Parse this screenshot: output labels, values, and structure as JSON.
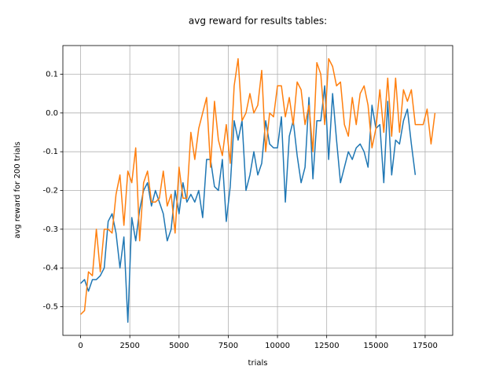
{
  "chart_data": {
    "type": "line",
    "title": "avg reward for results tables:",
    "xlabel": "trials",
    "ylabel": "avg reward for 200 trials",
    "x": [
      0,
      200,
      400,
      600,
      800,
      1000,
      1200,
      1400,
      1600,
      1800,
      2000,
      2200,
      2400,
      2600,
      2800,
      3000,
      3200,
      3400,
      3600,
      3800,
      4000,
      4200,
      4400,
      4600,
      4800,
      5000,
      5200,
      5400,
      5600,
      5800,
      6000,
      6200,
      6400,
      6600,
      6800,
      7000,
      7200,
      7400,
      7600,
      7800,
      8000,
      8200,
      8400,
      8600,
      8800,
      9000,
      9200,
      9400,
      9600,
      9800,
      10000,
      10200,
      10400,
      10600,
      10800,
      11000,
      11200,
      11400,
      11600,
      11800,
      12000,
      12200,
      12400,
      12600,
      12800,
      13000,
      13200,
      13400,
      13600,
      13800,
      14000,
      14200,
      14400,
      14600,
      14800,
      15000,
      15200,
      15400,
      15600,
      15800,
      16000,
      16200,
      16400,
      16600,
      16800,
      17000,
      17200,
      17400,
      17600,
      17800,
      18000
    ],
    "series": [
      {
        "color": "#1f77b4",
        "values": [
          -0.44,
          -0.43,
          -0.46,
          -0.43,
          -0.43,
          -0.42,
          -0.4,
          -0.28,
          -0.26,
          -0.31,
          -0.4,
          -0.32,
          -0.54,
          -0.27,
          -0.33,
          -0.25,
          -0.2,
          -0.18,
          -0.24,
          -0.2,
          -0.23,
          -0.26,
          -0.33,
          -0.3,
          -0.2,
          -0.26,
          -0.18,
          -0.23,
          -0.21,
          -0.23,
          -0.2,
          -0.27,
          -0.12,
          -0.12,
          -0.19,
          -0.2,
          -0.12,
          -0.28,
          -0.19,
          -0.02,
          -0.07,
          -0.02,
          -0.2,
          -0.16,
          -0.1,
          -0.16,
          -0.13,
          -0.02,
          -0.08,
          -0.09,
          -0.09,
          -0.01,
          -0.23,
          -0.06,
          -0.02,
          -0.11,
          -0.18,
          -0.14,
          0.04,
          -0.17,
          -0.02,
          -0.02,
          0.07,
          -0.12,
          0.05,
          -0.07,
          -0.18,
          -0.14,
          -0.1,
          -0.12,
          -0.09,
          -0.08,
          -0.1,
          -0.14,
          0.02,
          -0.04,
          -0.03,
          -0.18,
          0.03,
          -0.16,
          -0.07,
          -0.08,
          -0.02,
          0.01,
          -0.08,
          -0.16,
          null,
          null,
          null,
          null,
          null
        ]
      },
      {
        "color": "#ff7f0e",
        "values": [
          -0.52,
          -0.51,
          -0.41,
          -0.42,
          -0.3,
          -0.41,
          -0.3,
          -0.3,
          -0.31,
          -0.21,
          -0.16,
          -0.29,
          -0.15,
          -0.18,
          -0.09,
          -0.33,
          -0.18,
          -0.15,
          -0.23,
          -0.23,
          -0.22,
          -0.15,
          -0.24,
          -0.21,
          -0.31,
          -0.14,
          -0.22,
          -0.22,
          -0.05,
          -0.12,
          -0.04,
          0.0,
          0.04,
          -0.14,
          0.03,
          -0.07,
          -0.11,
          -0.03,
          -0.13,
          0.07,
          0.14,
          -0.02,
          0.0,
          0.05,
          0.0,
          0.02,
          0.11,
          -0.1,
          0.0,
          -0.01,
          0.07,
          0.07,
          -0.01,
          0.04,
          -0.03,
          0.08,
          0.06,
          -0.03,
          0.02,
          -0.1,
          0.13,
          0.1,
          -0.03,
          0.14,
          0.12,
          0.07,
          0.08,
          -0.03,
          -0.06,
          0.04,
          -0.03,
          0.05,
          0.07,
          0.02,
          -0.09,
          -0.04,
          0.06,
          -0.05,
          0.09,
          -0.06,
          0.09,
          -0.05,
          0.06,
          0.03,
          0.06,
          -0.03,
          -0.03,
          -0.03,
          0.01,
          -0.08,
          0.0
        ]
      }
    ],
    "xlim": [
      -900,
      18900
    ],
    "ylim": [
      -0.574,
      0.174
    ],
    "xticks": [
      0,
      2500,
      5000,
      7500,
      10000,
      12500,
      15000,
      17500
    ],
    "yticks": [
      -0.5,
      -0.4,
      -0.3,
      -0.2,
      -0.1,
      {
        "value": 0,
        "label": "0.0"
      },
      0.1
    ],
    "grid": true
  }
}
